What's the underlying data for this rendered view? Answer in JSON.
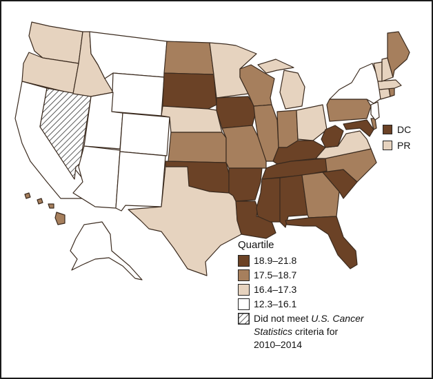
{
  "colors": {
    "q1": "#6b4226",
    "q2": "#a67f5d",
    "q3": "#e6d3bf",
    "q4": "#ffffff",
    "outline": "#3a2a1e"
  },
  "small_areas": [
    {
      "label": "DC",
      "quartile": "q1"
    },
    {
      "label": "PR",
      "quartile": "q3"
    }
  ],
  "legend": {
    "title": "Quartile",
    "items": [
      {
        "label": "18.9–21.8",
        "quartile": "q1"
      },
      {
        "label": "17.5–18.7",
        "quartile": "q2"
      },
      {
        "label": "16.4–17.3",
        "quartile": "q3"
      },
      {
        "label": "12.3–16.1",
        "quartile": "q4"
      }
    ],
    "hatched_item": {
      "line1_prefix": "Did not meet ",
      "line1_italic": "U.S. Cancer",
      "line2_italic": "Statistics",
      "line2_suffix": " criteria for",
      "line3": "2010–2014"
    }
  },
  "states": {
    "WA": "q3",
    "OR": "q3",
    "CA": "q4",
    "NV": "hatched",
    "ID": "q3",
    "MT": "q4",
    "WY": "q4",
    "UT": "q4",
    "AZ": "q4",
    "CO": "q4",
    "NM": "q4",
    "ND": "q2",
    "SD": "q1",
    "NE": "q3",
    "KS": "q2",
    "OK": "q1",
    "TX": "q3",
    "MN": "q3",
    "IA": "q1",
    "MO": "q2",
    "AR": "q1",
    "LA": "q1",
    "WI": "q2",
    "IL": "q2",
    "MI": "q3",
    "IN": "q2",
    "OH": "q3",
    "KY": "q1",
    "TN": "q1",
    "MS": "q1",
    "AL": "q1",
    "GA": "q2",
    "FL": "q1",
    "SC": "q1",
    "NC": "q2",
    "VA": "q3",
    "WV": "q1",
    "PA": "q2",
    "NY": "q4",
    "MD": "q1",
    "DE": "q2",
    "NJ": "q4",
    "CT": "q3",
    "RI": "q2",
    "MA": "q3",
    "VT": "q3",
    "NH": "q3",
    "ME": "q2",
    "AK": "q4",
    "HI": "q2"
  }
}
